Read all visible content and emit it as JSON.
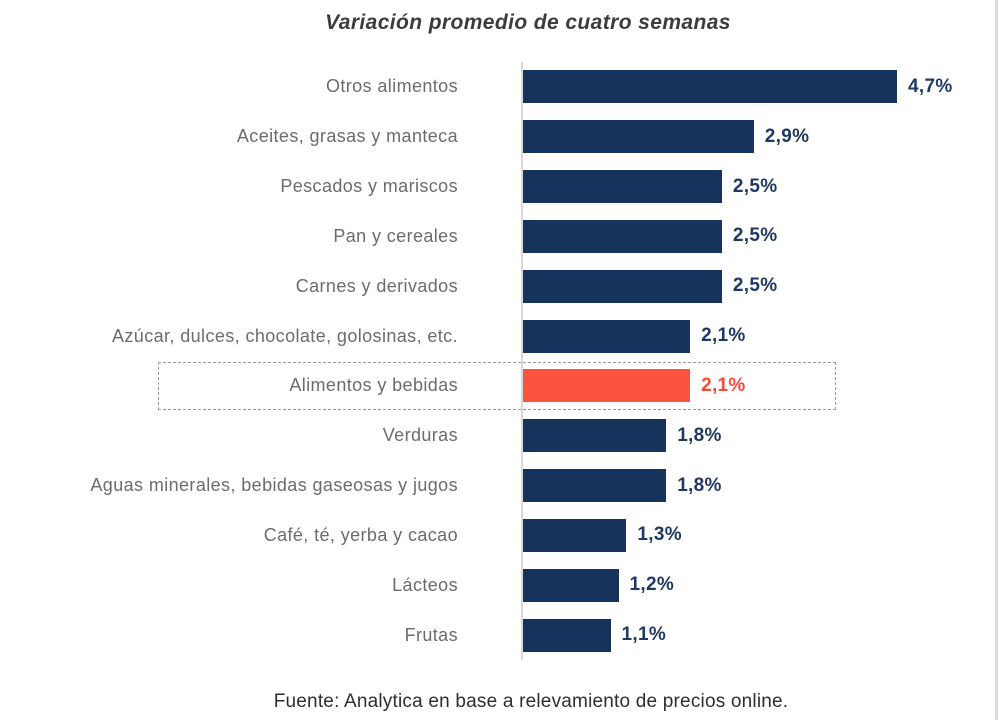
{
  "chart_data": {
    "type": "bar",
    "orientation": "horizontal",
    "title": "Variación promedio de cuatro semanas",
    "categories": [
      "Otros alimentos",
      "Aceites, grasas y manteca",
      "Pescados y mariscos",
      "Pan y cereales",
      "Carnes y derivados",
      "Azúcar, dulces, chocolate, golosinas, etc.",
      "Alimentos y bebidas",
      "Verduras",
      "Aguas minerales, bebidas gaseosas y jugos",
      "Café, té, yerba y cacao",
      "Lácteos",
      "Frutas"
    ],
    "values": [
      4.7,
      2.9,
      2.5,
      2.5,
      2.5,
      2.1,
      2.1,
      1.8,
      1.8,
      1.3,
      1.2,
      1.1
    ],
    "value_labels": [
      "4,7%",
      "2,9%",
      "2,5%",
      "2,5%",
      "2,5%",
      "2,1%",
      "2,1%",
      "1,8%",
      "1,8%",
      "1,3%",
      "1,2%",
      "1,1%"
    ],
    "unit": "%",
    "highlight_index": 6,
    "highlight_category": "Alimentos y bebidas",
    "xlim": [
      0,
      4.7
    ],
    "grid": false,
    "legend": "none",
    "source": "Fuente: Analytica en base a relevamiento de precios online.",
    "colors": {
      "bar": "#16335C",
      "highlight_bar": "#FB5340",
      "value_label": "#1F3864",
      "highlight_value_label": "#F94A38",
      "category_label": "#6C6C6C",
      "axis_line": "#D9D9D9",
      "highlight_box_border": "#9B9B9B",
      "title_text": "#3C3C3C",
      "source_text": "#2E2E2E"
    }
  }
}
